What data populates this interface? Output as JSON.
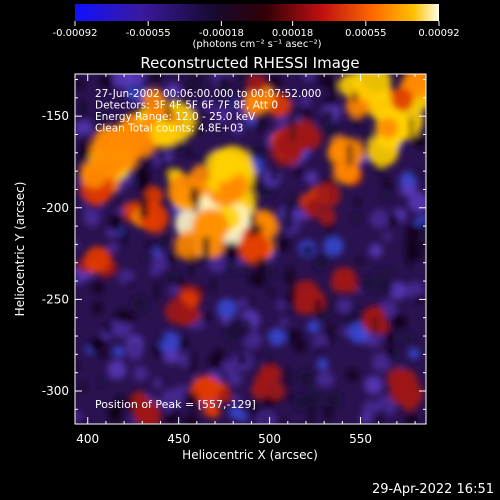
{
  "chart_data": {
    "type": "heatmap",
    "title": "Reconstructed RHESSI Image",
    "xlabel": "Heliocentric X (arcsec)",
    "ylabel": "Heliocentric Y (arcsec)",
    "xlim": [
      393,
      586
    ],
    "ylim": [
      -318,
      -127
    ],
    "xticks": [
      "400",
      "450",
      "500",
      "550"
    ],
    "xtick_values": [
      400,
      450,
      500,
      550
    ],
    "yticks": [
      "-150",
      "-200",
      "-250",
      "-300"
    ],
    "ytick_values": [
      -150,
      -200,
      -250,
      -300
    ],
    "colorbar": {
      "ticks": [
        "-0.00092",
        "-0.00055",
        "-0.00018",
        "0.00018",
        "0.00055",
        "0.00092"
      ],
      "tick_values": [
        -0.00092,
        -0.00055,
        -0.00018,
        0.00018,
        0.00055,
        0.00092
      ],
      "range": [
        -0.00092,
        0.00092
      ],
      "unit_label": "(photons cm⁻² s⁻¹ asec⁻²)"
    },
    "annotations": [
      "27-Jun-2002 00:06:00.000 to 00:07:52.000",
      "Detectors: 3F 4F 5F 6F 7F 8F, Att 0",
      "Energy Range: 12.0 - 25.0 keV",
      "Clean    Total counts: 4.8E+03"
    ],
    "peak_label": "Position of Peak = [557,-129]",
    "peak": [
      557,
      -129
    ],
    "grid": false
  },
  "footer_timestamp": "29-Apr-2022 16:51"
}
